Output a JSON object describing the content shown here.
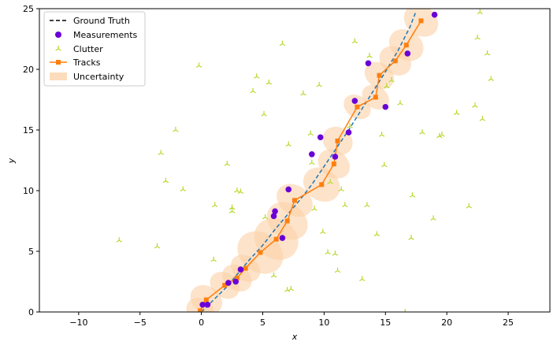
{
  "chart_data": {
    "type": "scatter",
    "title": "",
    "xlabel": "x",
    "ylabel": "y",
    "xlim": [
      -13.2,
      28.4
    ],
    "ylim": [
      0,
      25
    ],
    "xticks": [
      -10,
      -5,
      0,
      5,
      10,
      15,
      20,
      25
    ],
    "yticks": [
      0,
      5,
      10,
      15,
      20,
      25
    ],
    "xtick_labels": [
      "−10",
      "−5",
      "0",
      "5",
      "10",
      "15",
      "20",
      "25"
    ],
    "ytick_labels": [
      "0",
      "5",
      "10",
      "15",
      "20",
      "25"
    ],
    "grid": false,
    "legend": {
      "placement": "top-left",
      "entries": [
        "Ground Truth",
        "Measurements",
        "Clutter",
        "Tracks",
        "Uncertainty"
      ]
    },
    "colors": {
      "ground_truth_legend": "#000000",
      "ground_truth_line": "#1f77b4",
      "measurements": "#6a00d8",
      "clutter": "#b5d92a",
      "tracks": "#ff7f0e",
      "uncertainty": "#fbd0a6"
    },
    "series": [
      {
        "name": "Ground Truth",
        "kind": "line",
        "x": [
          0.0,
          1.0,
          2.0,
          3.0,
          4.0,
          5.0,
          6.0,
          7.0,
          8.0,
          9.0,
          10.0,
          11.0,
          12.0,
          13.0,
          14.0,
          15.0,
          16.0,
          17.0,
          17.5
        ],
        "y": [
          0.0,
          1.0,
          2.0,
          3.2,
          4.4,
          5.5,
          6.8,
          8.0,
          9.2,
          10.5,
          12.0,
          13.5,
          15.0,
          16.6,
          18.2,
          19.8,
          21.5,
          23.5,
          24.8
        ]
      },
      {
        "name": "Measurements",
        "kind": "scatter",
        "x": [
          0.1,
          0.5,
          2.2,
          2.8,
          3.2,
          5.9,
          6.0,
          6.6,
          7.1,
          9.0,
          9.7,
          10.9,
          12.0,
          12.5,
          13.6,
          15.0,
          16.8,
          19.0
        ],
        "y": [
          0.6,
          0.6,
          2.4,
          2.5,
          3.5,
          7.9,
          8.3,
          6.1,
          10.1,
          13.0,
          14.4,
          12.8,
          14.8,
          17.4,
          20.5,
          16.9,
          21.3,
          24.5
        ]
      },
      {
        "name": "Clutter",
        "kind": "scatter",
        "x": [
          -6.7,
          -3.6,
          -3.3,
          -2.9,
          -2.1,
          -1.5,
          -0.2,
          1.0,
          1.1,
          2.1,
          2.5,
          2.5,
          2.9,
          3.2,
          4.2,
          4.5,
          5.1,
          5.2,
          5.5,
          5.9,
          6.6,
          7.0,
          7.1,
          7.3,
          8.3,
          8.9,
          9.0,
          9.2,
          9.6,
          9.9,
          10.3,
          10.5,
          10.9,
          11.1,
          11.4,
          11.7,
          12.1,
          12.5,
          13.1,
          13.5,
          13.7,
          14.3,
          14.7,
          14.9,
          15.1,
          15.5,
          16.2,
          16.6,
          17.1,
          17.2,
          18.0,
          18.9,
          19.4,
          19.6,
          20.8,
          21.8,
          22.3,
          22.5,
          22.7,
          22.9,
          23.3,
          23.6
        ],
        "y": [
          5.9,
          5.4,
          13.1,
          10.8,
          15.0,
          10.1,
          20.3,
          4.3,
          8.8,
          12.2,
          8.6,
          8.3,
          10.0,
          9.9,
          18.2,
          19.4,
          16.3,
          7.8,
          18.9,
          3.0,
          22.1,
          1.8,
          13.8,
          1.9,
          18.0,
          14.7,
          12.3,
          8.5,
          18.7,
          6.6,
          4.9,
          10.7,
          4.8,
          3.4,
          10.1,
          8.8,
          15.3,
          22.3,
          2.7,
          8.8,
          21.1,
          6.4,
          14.6,
          12.1,
          18.6,
          19.1,
          17.2,
          0.0,
          6.1,
          9.6,
          14.8,
          7.7,
          14.5,
          14.6,
          16.4,
          8.7,
          17.0,
          22.6,
          24.7,
          15.9,
          21.3,
          19.2
        ]
      },
      {
        "name": "Tracks",
        "kind": "line-markers",
        "x": [
          -0.1,
          0.4,
          1.9,
          2.9,
          3.6,
          4.8,
          6.1,
          7.0,
          7.6,
          9.8,
          10.8,
          11.1,
          12.7,
          14.2,
          14.5,
          15.8,
          16.7,
          17.9
        ],
        "y": [
          0.1,
          1.0,
          2.2,
          2.8,
          3.6,
          4.9,
          6.0,
          7.5,
          9.2,
          10.5,
          12.2,
          14.1,
          16.9,
          17.7,
          19.5,
          20.7,
          22.0,
          24.0
        ]
      },
      {
        "name": "Uncertainty",
        "kind": "ellipses",
        "cx": [
          -0.1,
          0.4,
          1.9,
          2.9,
          3.6,
          4.8,
          6.1,
          7.0,
          7.6,
          9.8,
          10.8,
          11.1,
          12.7,
          14.2,
          14.5,
          15.8,
          16.7,
          17.9
        ],
        "cy": [
          0.1,
          1.0,
          2.2,
          2.8,
          3.6,
          4.9,
          6.0,
          7.5,
          9.2,
          10.5,
          12.2,
          14.1,
          16.9,
          17.7,
          19.5,
          20.7,
          22.0,
          24.0
        ],
        "rx": [
          1.0,
          1.1,
          1.0,
          1.0,
          1.0,
          1.6,
          1.6,
          1.4,
          1.2,
          1.3,
          1.1,
          1.1,
          0.9,
          0.9,
          1.0,
          1.1,
          1.2,
          1.2
        ],
        "ry": [
          1.2,
          1.4,
          1.3,
          1.3,
          1.3,
          2.0,
          1.9,
          1.8,
          1.6,
          1.6,
          1.4,
          1.3,
          1.2,
          1.2,
          1.3,
          1.4,
          1.5,
          1.5
        ],
        "rotation_deg": [
          -55,
          -55,
          -55,
          -55,
          -55,
          -55,
          -55,
          -55,
          -55,
          -55,
          -55,
          -55,
          -55,
          -55,
          -55,
          -55,
          -55,
          -55
        ]
      }
    ]
  }
}
